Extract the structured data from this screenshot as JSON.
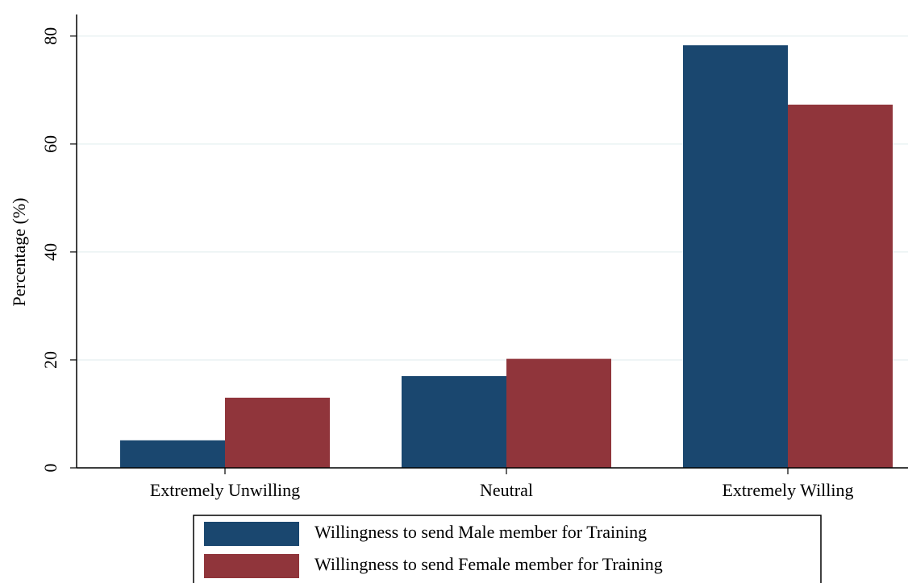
{
  "chart_data": {
    "type": "bar",
    "y_label": "Percentage (%)",
    "categories": [
      "Extremely Unwilling",
      "Neutral",
      "Extremely Willing"
    ],
    "series": [
      {
        "name": "Willingness to send Male member for Training",
        "color": "#1a476f",
        "values": [
          5.1,
          17.0,
          78.3
        ]
      },
      {
        "name": "Willingness to send Female member for Training",
        "color": "#90353b",
        "values": [
          13.0,
          20.2,
          67.3
        ]
      }
    ],
    "ylim": [
      0,
      84
    ],
    "yticks": [
      0,
      20,
      40,
      60,
      80
    ],
    "grid": true,
    "legend": "bottom"
  }
}
